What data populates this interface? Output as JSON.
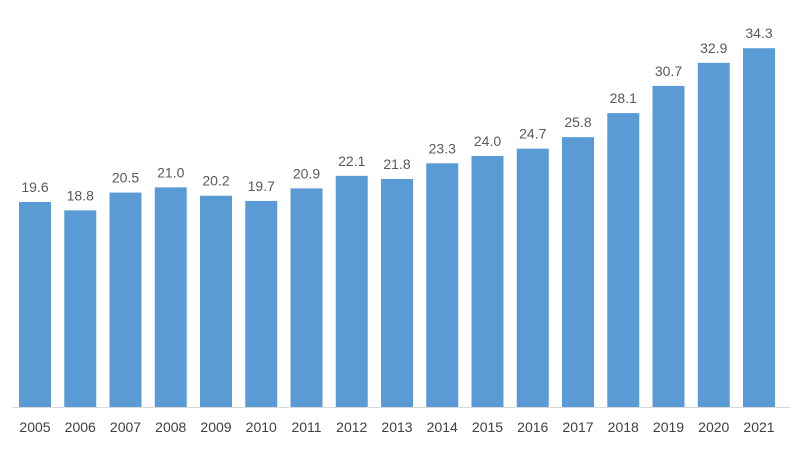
{
  "chart_data": {
    "type": "bar",
    "title": "",
    "xlabel": "",
    "ylabel": "",
    "categories": [
      "2005",
      "2006",
      "2007",
      "2008",
      "2009",
      "2010",
      "2011",
      "2012",
      "2013",
      "2014",
      "2015",
      "2016",
      "2017",
      "2018",
      "2019",
      "2020",
      "2021"
    ],
    "values": [
      19.6,
      18.8,
      20.5,
      21.0,
      20.2,
      19.7,
      20.9,
      22.1,
      21.8,
      23.3,
      24.0,
      24.7,
      25.8,
      28.1,
      30.7,
      32.9,
      34.3
    ],
    "value_labels": [
      "19.6",
      "18.8",
      "20.5",
      "21.0",
      "20.2",
      "19.7",
      "20.9",
      "22.1",
      "21.8",
      "23.3",
      "24.0",
      "24.7",
      "25.8",
      "28.1",
      "30.7",
      "32.9",
      "34.3"
    ],
    "ylim": [
      0,
      35
    ],
    "grid": false,
    "legend": "none",
    "colors": {
      "bar": "#5b9bd5",
      "axis": "#d9d9d9"
    }
  }
}
